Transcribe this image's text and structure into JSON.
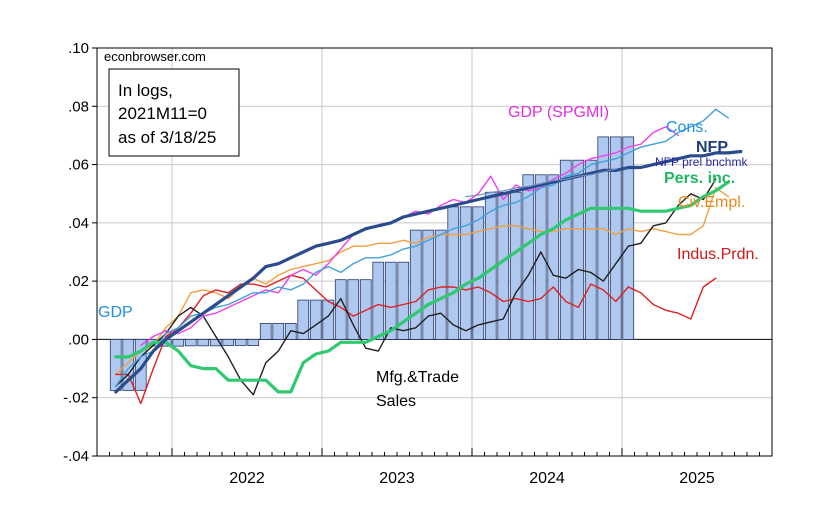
{
  "chart_data": {
    "type": "line",
    "title": "",
    "xlabel": "",
    "ylabel": "",
    "ylim": [
      -0.04,
      0.1
    ],
    "y_ticks": [
      ".10",
      ".08",
      ".06",
      ".04",
      ".02",
      ".00",
      "-.02",
      "-.04"
    ],
    "y_tick_values": [
      0.1,
      0.08,
      0.06,
      0.04,
      0.02,
      0.0,
      -0.02,
      -0.04
    ],
    "x_ticks": [
      "2022",
      "2023",
      "2024",
      "2025"
    ],
    "x_tick_dates": [
      "2022-01",
      "2023-01",
      "2024-01",
      "2025-01"
    ],
    "xlim": [
      "2021-07",
      "2025-12"
    ],
    "grid": true,
    "source_label": "econbrowser.com",
    "note_lines": [
      "In logs,",
      "2021M11=0",
      "as of 3/18/25"
    ],
    "colors": {
      "gdp_bars": "#aec8f0",
      "nfp": "#2b4c8c",
      "nfp_bench": "#7090c0",
      "cons": "#40a0e0",
      "gdp_spgmi": "#f040f0",
      "pers_inc": "#30c870",
      "civ_empl": "#f0a040",
      "indus": "#e02020",
      "mfg": "#202020"
    },
    "labels": {
      "gdp": "GDP",
      "gdp_spgmi": "GDP (SPGMI)",
      "cons": "Cons.",
      "nfp": "NFP",
      "nfp_bench": "NFP prel bnchmk",
      "pers_inc": "Pers. inc.",
      "civ_empl": "Civ.Empl.",
      "indus": "Indus.Prdn.",
      "mfg_line1": "Mfg.&Trade",
      "mfg_line2": "Sales"
    },
    "gdp_bars": {
      "start": "2021-08",
      "values": [
        -0.0175,
        -0.0175,
        -0.0175,
        -0.0023,
        -0.0023,
        -0.0023,
        -0.0022,
        -0.0022,
        -0.0022,
        -0.0021,
        -0.0021,
        -0.0021,
        0.0055,
        0.0055,
        0.0055,
        0.0135,
        0.0135,
        0.0135,
        0.0205,
        0.0205,
        0.0205,
        0.0265,
        0.0265,
        0.0265,
        0.0375,
        0.0375,
        0.0375,
        0.0455,
        0.0455,
        0.0455,
        0.0505,
        0.0505,
        0.0505,
        0.0565,
        0.0565,
        0.0565,
        0.0615,
        0.0615,
        0.0615,
        0.0695,
        0.0695,
        0.0695
      ]
    },
    "series": [
      {
        "key": "nfp",
        "name": "NFP",
        "start": "2021-08",
        "width": 3.2,
        "values": [
          -0.018,
          -0.014,
          -0.01,
          -0.004,
          0.0,
          0.003,
          0.006,
          0.009,
          0.012,
          0.015,
          0.018,
          0.021,
          0.025,
          0.026,
          0.028,
          0.03,
          0.032,
          0.033,
          0.034,
          0.036,
          0.038,
          0.039,
          0.04,
          0.042,
          0.043,
          0.044,
          0.045,
          0.046,
          0.047,
          0.048,
          0.049,
          0.05,
          0.051,
          0.052,
          0.053,
          0.054,
          0.055,
          0.056,
          0.057,
          0.058,
          0.058,
          0.059,
          0.059,
          0.06,
          0.061,
          0.062,
          0.063,
          0.063,
          0.064,
          0.064,
          0.0645
        ]
      },
      {
        "key": "nfp_bench",
        "name": "NFP prel bnchmk",
        "start": "2023-12",
        "width": 1.2,
        "values": [
          0.049,
          0.0495,
          0.0505,
          0.051,
          0.052,
          0.0525,
          0.0535,
          0.0545,
          0.055,
          0.056,
          0.0565,
          0.0575,
          0.0585
        ]
      },
      {
        "key": "cons",
        "name": "Cons.",
        "start": "2021-08",
        "width": 1.4,
        "values": [
          -0.016,
          -0.01,
          -0.006,
          -0.004,
          0.002,
          0.004,
          0.008,
          0.009,
          0.011,
          0.012,
          0.014,
          0.016,
          0.016,
          0.018,
          0.017,
          0.019,
          0.023,
          0.025,
          0.023,
          0.026,
          0.028,
          0.028,
          0.029,
          0.031,
          0.032,
          0.034,
          0.036,
          0.038,
          0.039,
          0.041,
          0.044,
          0.046,
          0.047,
          0.049,
          0.052,
          0.053,
          0.056,
          0.057,
          0.06,
          0.061,
          0.062,
          0.064,
          0.066,
          0.067,
          0.068,
          0.071,
          0.073,
          0.075,
          0.079,
          0.076
        ]
      },
      {
        "key": "gdp_spgmi",
        "name": "GDP (SPGMI)",
        "start": "2021-10",
        "width": 1.4,
        "values": [
          -0.002,
          0.001,
          0.003,
          0.002,
          0.004,
          0.008,
          0.009,
          0.011,
          0.013,
          0.015,
          0.017,
          0.016,
          0.022,
          0.024,
          0.022,
          0.026,
          0.031,
          0.036,
          0.038,
          0.039,
          0.04,
          0.042,
          0.044,
          0.043,
          0.046,
          0.048,
          0.047,
          0.05,
          0.056,
          0.048,
          0.053,
          0.051,
          0.052,
          0.055,
          0.057,
          0.06,
          0.062,
          0.063,
          0.064,
          0.066,
          0.067,
          0.071,
          0.073,
          0.07
        ]
      },
      {
        "key": "pers_inc",
        "name": "Pers. inc.",
        "start": "2021-08",
        "width": 3.2,
        "values": [
          -0.006,
          -0.006,
          -0.004,
          -0.001,
          -0.001,
          -0.004,
          -0.009,
          -0.01,
          -0.01,
          -0.014,
          -0.014,
          -0.014,
          -0.014,
          -0.018,
          -0.018,
          -0.008,
          -0.005,
          -0.004,
          -0.001,
          -0.001,
          -0.001,
          0.001,
          0.003,
          0.006,
          0.009,
          0.012,
          0.014,
          0.016,
          0.019,
          0.021,
          0.024,
          0.027,
          0.03,
          0.033,
          0.036,
          0.038,
          0.041,
          0.043,
          0.045,
          0.045,
          0.045,
          0.045,
          0.044,
          0.044,
          0.044,
          0.045,
          0.046,
          0.049,
          0.051,
          0.054
        ]
      },
      {
        "key": "civ_empl",
        "name": "Civ.Empl.",
        "start": "2021-08",
        "width": 1.4,
        "values": [
          -0.012,
          -0.008,
          -0.004,
          -0.002,
          0.004,
          0.008,
          0.016,
          0.017,
          0.016,
          0.014,
          0.018,
          0.021,
          0.019,
          0.022,
          0.024,
          0.025,
          0.026,
          0.027,
          0.03,
          0.032,
          0.032,
          0.033,
          0.033,
          0.034,
          0.033,
          0.035,
          0.036,
          0.036,
          0.036,
          0.037,
          0.038,
          0.039,
          0.039,
          0.038,
          0.037,
          0.037,
          0.038,
          0.038,
          0.038,
          0.038,
          0.036,
          0.038,
          0.037,
          0.038,
          0.037,
          0.036,
          0.036,
          0.039,
          0.052,
          0.049
        ]
      },
      {
        "key": "indus",
        "name": "Indus.Prdn.",
        "start": "2021-08",
        "width": 1.4,
        "values": [
          -0.012,
          -0.012,
          -0.022,
          -0.01,
          0.001,
          0.004,
          0.009,
          0.015,
          0.017,
          0.016,
          0.019,
          0.019,
          0.018,
          0.02,
          0.022,
          0.021,
          0.017,
          0.013,
          0.011,
          0.008,
          0.01,
          0.012,
          0.011,
          0.012,
          0.013,
          0.017,
          0.018,
          0.018,
          0.017,
          0.018,
          0.016,
          0.013,
          0.014,
          0.013,
          0.014,
          0.018,
          0.013,
          0.011,
          0.019,
          0.017,
          0.013,
          0.018,
          0.016,
          0.012,
          0.01,
          0.009,
          0.007,
          0.018,
          0.021
        ]
      },
      {
        "key": "mfg",
        "name": "Mfg.&Trade Sales",
        "start": "2021-08",
        "width": 1.4,
        "values": [
          -0.016,
          -0.012,
          -0.006,
          -0.002,
          0.002,
          0.008,
          0.011,
          0.008,
          0.001,
          -0.006,
          -0.014,
          -0.019,
          -0.008,
          -0.004,
          0.003,
          0.002,
          0.005,
          0.008,
          0.014,
          0.005,
          -0.003,
          -0.004,
          0.004,
          0.003,
          0.004,
          0.008,
          0.009,
          0.005,
          0.003,
          0.005,
          0.006,
          0.007,
          0.016,
          0.022,
          0.03,
          0.022,
          0.021,
          0.024,
          0.023,
          0.02,
          0.026,
          0.032,
          0.033,
          0.039,
          0.04,
          0.046,
          0.05,
          0.048,
          0.055
        ]
      }
    ]
  }
}
